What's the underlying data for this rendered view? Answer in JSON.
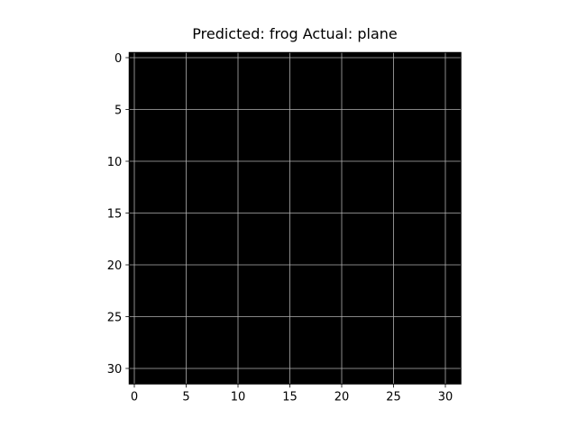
{
  "chart_data": {
    "type": "image",
    "title": "Predicted: frog Actual: plane",
    "xlim": [
      -0.5,
      31.5
    ],
    "ylim": [
      31.5,
      -0.5
    ],
    "xticks": [
      0,
      5,
      10,
      15,
      20,
      25,
      30
    ],
    "yticks": [
      0,
      5,
      10,
      15,
      20,
      25,
      30
    ],
    "grid": true
  }
}
